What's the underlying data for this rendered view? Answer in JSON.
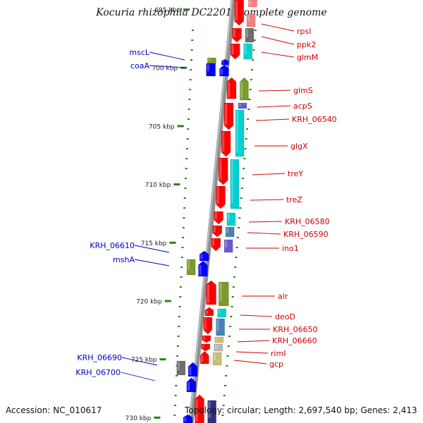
{
  "title": "Kocuria rhizophila DC2201, complete genome",
  "footer": {
    "accession": "Accession: NC_010617",
    "topology": "Topology: circular; Length: 2,697,540 bp; Genes: 2,413"
  },
  "colors": {
    "red": "#ff0000",
    "blue": "#0000ff",
    "gray": "#6e6e6e",
    "cyan": "#00d0d0",
    "olive": "#7a9a2a",
    "purple": "#6a5acd",
    "steel": "#4682b4",
    "khaki": "#c8c070",
    "label_red": "#cc0000",
    "label_blue": "#0000cc",
    "tick_green": "#2e7d1e"
  },
  "scale_ticks": [
    {
      "label": "695 kbp"
    },
    {
      "label": "700 kbp"
    },
    {
      "label": "705 kbp"
    },
    {
      "label": "710 kbp"
    },
    {
      "label": "715 kbp"
    },
    {
      "label": "720 kbp"
    },
    {
      "label": "725 kbp"
    },
    {
      "label": "730 kbp"
    }
  ],
  "right_labels": [
    {
      "text": "rpsI"
    },
    {
      "text": "ppk2"
    },
    {
      "text": "glmM"
    },
    {
      "text": "glmS"
    },
    {
      "text": "acpS"
    },
    {
      "text": "KRH_06540"
    },
    {
      "text": "glgX"
    },
    {
      "text": "treY"
    },
    {
      "text": "treZ"
    },
    {
      "text": "KRH_06580"
    },
    {
      "text": "KRH_06590"
    },
    {
      "text": "ino1"
    },
    {
      "text": "alr"
    },
    {
      "text": "deoD"
    },
    {
      "text": "KRH_06650"
    },
    {
      "text": "KRH_06660"
    },
    {
      "text": "rimI"
    },
    {
      "text": "gcp"
    }
  ],
  "left_labels": [
    {
      "text": "mscL"
    },
    {
      "text": "coaA"
    },
    {
      "text": "KRH_06610"
    },
    {
      "text": "mshA"
    },
    {
      "text": "KRH_06690"
    },
    {
      "text": "KRH_06700"
    }
  ]
}
